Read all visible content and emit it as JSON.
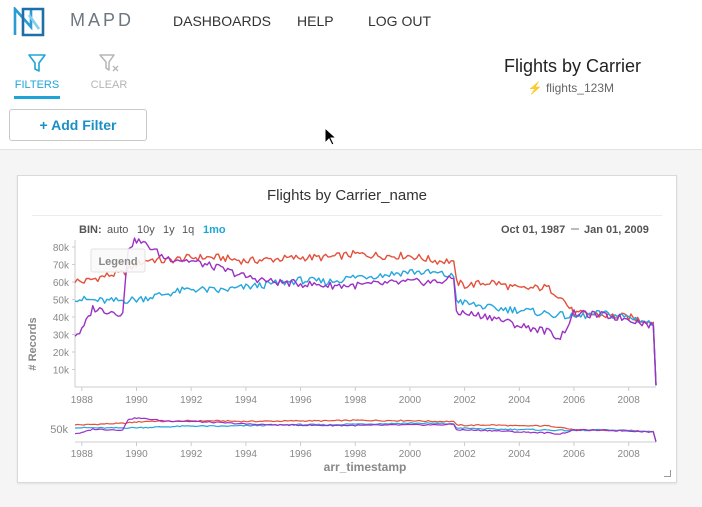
{
  "app": {
    "logo_text": "MAPD"
  },
  "nav": {
    "dashboards": "DASHBOARDS",
    "help": "HELP",
    "logout": "LOG OUT"
  },
  "toolbar": {
    "filters": "FILTERS",
    "clear": "CLEAR"
  },
  "dashboard": {
    "title": "Flights by Carrier",
    "table": "flights_123M"
  },
  "filterbar": {
    "add_filter": "+ Add Filter"
  },
  "colors": {
    "accent": "#1ea5d8",
    "red": "#e4503a",
    "blue": "#25a6dd",
    "purple": "#9b31c4"
  },
  "chart_data": {
    "type": "line",
    "title": "Flights by Carrier_name",
    "bin_label": "BIN:",
    "bins": [
      "auto",
      "10y",
      "1y",
      "1q",
      "1mo"
    ],
    "active_bin": "1mo",
    "date_from": "Oct 01, 1987",
    "date_to": "Jan 01, 2009",
    "legend_label": "Legend",
    "ylabel": "# Records",
    "xlabel": "arr_timestamp",
    "y_ticks": [
      "10k",
      "20k",
      "30k",
      "40k",
      "50k",
      "60k",
      "70k",
      "80k"
    ],
    "x_ticks": [
      "1988",
      "1990",
      "1992",
      "1994",
      "1996",
      "1998",
      "2000",
      "2002",
      "2004",
      "2006",
      "2008"
    ],
    "range_y_tick": "50k",
    "xlim": [
      1987.75,
      2009.0
    ],
    "ylim": [
      0,
      84000
    ],
    "series": [
      {
        "color": "red",
        "x": [
          1987.75,
          1988,
          1989,
          1989.5,
          1990,
          1990.5,
          1991,
          1992,
          1993,
          1994,
          1995,
          1996,
          1997,
          1998,
          1999,
          2000,
          2001,
          2001.6,
          2001.7,
          2002,
          2003,
          2004,
          2005,
          2005.5,
          2006,
          2007,
          2008,
          2008.9,
          2009
        ],
        "y": [
          61000,
          60000,
          64000,
          65000,
          70000,
          73000,
          72000,
          74000,
          74000,
          72000,
          73000,
          74000,
          74000,
          76000,
          75000,
          75000,
          72000,
          72000,
          60000,
          58000,
          60000,
          56000,
          57000,
          52000,
          42000,
          41000,
          40000,
          37000,
          1000
        ]
      },
      {
        "color": "blue",
        "x": [
          1987.75,
          1988,
          1989,
          1990,
          1991,
          1992,
          1993,
          1994,
          1995,
          1996,
          1997,
          1998,
          1999,
          2000,
          2001,
          2001.6,
          2001.7,
          2002,
          2003,
          2004,
          2005,
          2006,
          2007,
          2008,
          2008.9,
          2009
        ],
        "y": [
          51000,
          50000,
          49000,
          50000,
          53000,
          56000,
          55000,
          57000,
          59000,
          61000,
          60000,
          63000,
          64000,
          66000,
          65000,
          63000,
          50000,
          48000,
          45000,
          44000,
          42000,
          40000,
          42000,
          40000,
          36000,
          1000
        ]
      },
      {
        "color": "purple",
        "x": [
          1987.75,
          1988,
          1988.4,
          1989.5,
          1989.7,
          1990,
          1990.5,
          1991,
          1992,
          1993,
          1994,
          1995,
          1996,
          1997,
          1998,
          1999,
          2000,
          2001,
          2001.6,
          2001.7,
          2002,
          2003,
          2004,
          2005,
          2005.5,
          2006,
          2007,
          2008,
          2008.9,
          2009
        ],
        "y": [
          30000,
          32000,
          45000,
          42000,
          80000,
          84000,
          80000,
          74000,
          72000,
          68000,
          63000,
          60000,
          59000,
          58000,
          58000,
          59000,
          60000,
          60000,
          62000,
          43000,
          42000,
          40000,
          35000,
          32000,
          28000,
          42000,
          41000,
          39000,
          35000,
          1000
        ]
      }
    ]
  }
}
